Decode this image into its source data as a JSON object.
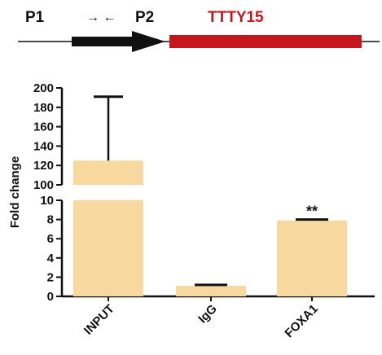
{
  "diagram": {
    "p1_label": "P1",
    "p2_label": "P2",
    "gene_label": "TTTY15",
    "arrows_label": "→ ←",
    "gene_color": "#c4161c",
    "promoter_color": "#111111"
  },
  "chart_data": {
    "type": "bar",
    "categories": [
      "INPUT",
      "IgG",
      "FOXA1"
    ],
    "values": [
      125,
      1.1,
      7.9
    ],
    "errors": [
      66,
      0.1,
      0.1
    ],
    "significance": [
      "",
      "",
      "**"
    ],
    "ylabel": "Fold change",
    "y_broken_axis": true,
    "y_lower_range": [
      0,
      10
    ],
    "y_upper_range": [
      100,
      200
    ],
    "y_lower_ticks": [
      0,
      2,
      4,
      6,
      8,
      10
    ],
    "y_upper_ticks": [
      100,
      120,
      140,
      160,
      180,
      200
    ],
    "bar_color": "#f7d9a0",
    "grid": false
  }
}
